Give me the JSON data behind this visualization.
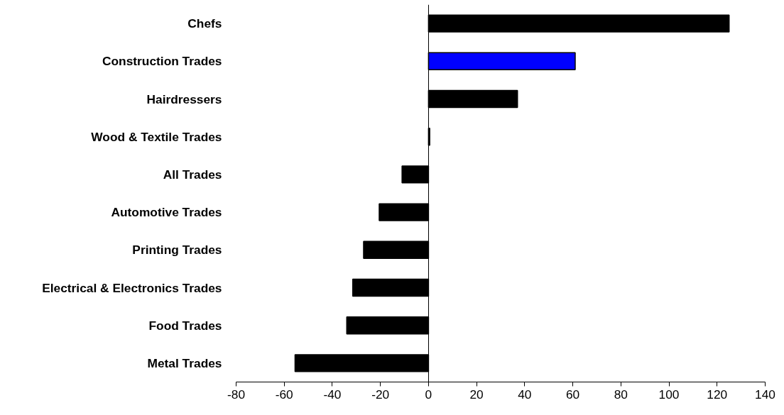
{
  "chart_data": {
    "type": "bar",
    "orientation": "horizontal",
    "categories": [
      "Chefs",
      "Construction Trades",
      "Hairdressers",
      "Wood & Textile Trades",
      "All Trades",
      "Automotive Trades",
      "Printing Trades",
      "Electrical & Electronics Trades",
      "Food Trades",
      "Metal Trades"
    ],
    "values": [
      125,
      61,
      37,
      0.5,
      -11,
      -20.5,
      -27,
      -31.5,
      -34,
      -55.5
    ],
    "colors": [
      "#000000",
      "#0000ff",
      "#000000",
      "#000000",
      "#000000",
      "#000000",
      "#000000",
      "#000000",
      "#000000",
      "#000000"
    ],
    "xlim": [
      -80,
      140
    ],
    "xticks": [
      -80,
      -60,
      -40,
      -20,
      0,
      20,
      40,
      60,
      80,
      100,
      120,
      140
    ]
  }
}
